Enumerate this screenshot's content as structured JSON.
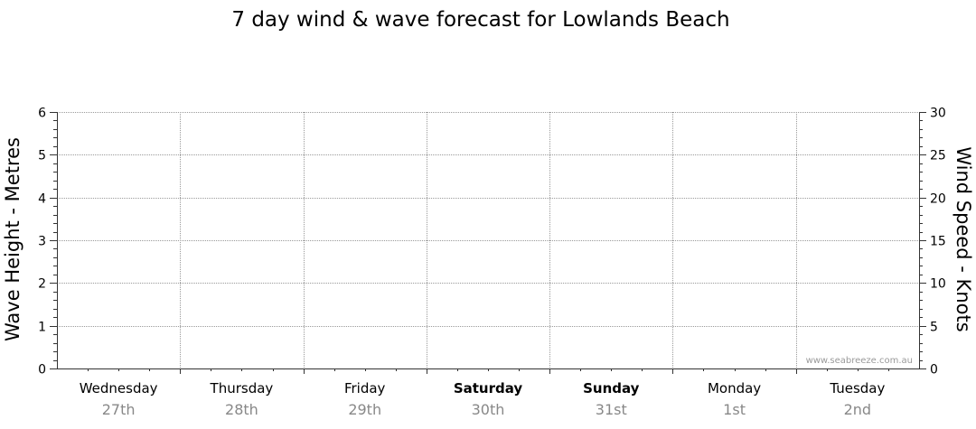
{
  "chart_data": {
    "type": "line",
    "title": "7 day wind & wave forecast for Lowlands Beach",
    "ylabel_left": "Wave Height - Metres",
    "ylabel_right": "Wind Speed - Knots",
    "ylim_left": [
      0,
      6
    ],
    "ylim_right": [
      0,
      30
    ],
    "yticks_left": [
      "0",
      "1",
      "2",
      "3",
      "4",
      "5",
      "6"
    ],
    "yticks_right": [
      "0",
      "5",
      "10",
      "15",
      "20",
      "25",
      "30"
    ],
    "grid": true,
    "days": [
      {
        "name": "Wednesday",
        "date": "27th",
        "bold": false
      },
      {
        "name": "Thursday",
        "date": "28th",
        "bold": false
      },
      {
        "name": "Friday",
        "date": "29th",
        "bold": false
      },
      {
        "name": "Saturday",
        "date": "30th",
        "bold": true
      },
      {
        "name": "Sunday",
        "date": "31st",
        "bold": true
      },
      {
        "name": "Monday",
        "date": "1st",
        "bold": false
      },
      {
        "name": "Tuesday",
        "date": "2nd",
        "bold": false
      }
    ],
    "series": []
  },
  "watermark": "www.seabreeze.com.au",
  "colors": {
    "grid": "#9a9a9a",
    "axis": "#333333",
    "date": "#888888"
  }
}
